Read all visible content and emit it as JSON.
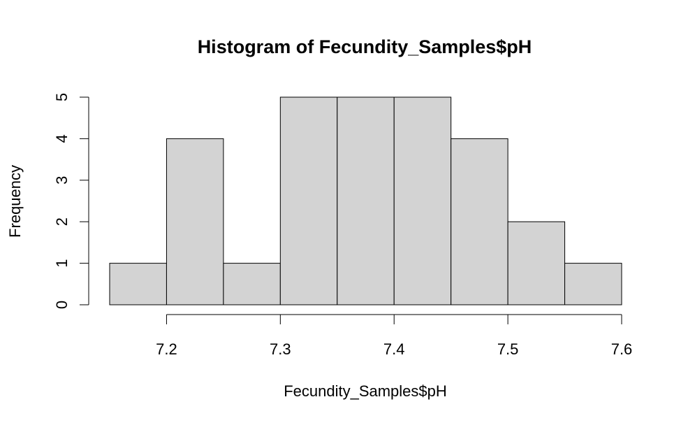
{
  "chart_data": {
    "type": "bar",
    "title": "Histogram of Fecundity_Samples$pH",
    "xlabel": "Fecundity_Samples$pH",
    "ylabel": "Frequency",
    "bins": [
      {
        "start": 7.15,
        "end": 7.2,
        "count": 1
      },
      {
        "start": 7.2,
        "end": 7.25,
        "count": 4
      },
      {
        "start": 7.25,
        "end": 7.3,
        "count": 1
      },
      {
        "start": 7.3,
        "end": 7.35,
        "count": 5
      },
      {
        "start": 7.35,
        "end": 7.4,
        "count": 5
      },
      {
        "start": 7.4,
        "end": 7.45,
        "count": 5
      },
      {
        "start": 7.45,
        "end": 7.5,
        "count": 4
      },
      {
        "start": 7.5,
        "end": 7.55,
        "count": 2
      },
      {
        "start": 7.55,
        "end": 7.6,
        "count": 1
      }
    ],
    "xticks": [
      7.2,
      7.3,
      7.4,
      7.5,
      7.6
    ],
    "xtick_labels": [
      "7.2",
      "7.3",
      "7.4",
      "7.5",
      "7.6"
    ],
    "yticks": [
      0,
      1,
      2,
      3,
      4,
      5
    ],
    "ytick_labels": [
      "0",
      "1",
      "2",
      "3",
      "4",
      "5"
    ],
    "xlim": [
      7.15,
      7.6
    ],
    "ylim": [
      0,
      5
    ],
    "grid": false,
    "legend": "none",
    "colors": {
      "bar_fill": "#d3d3d3",
      "bar_stroke": "#000000",
      "axis": "#000000"
    }
  }
}
